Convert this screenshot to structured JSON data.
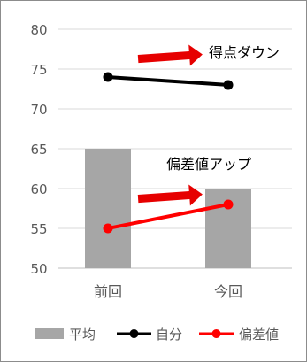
{
  "chart_data": {
    "type": "bar",
    "categories": [
      "前回",
      "今回"
    ],
    "ylim": [
      50,
      80
    ],
    "yticks": [
      50,
      55,
      60,
      65,
      70,
      75,
      80
    ],
    "grid": true,
    "legend": "bottom",
    "series": [
      {
        "name": "平均",
        "type": "bar",
        "values": [
          65,
          60
        ]
      },
      {
        "name": "自分",
        "type": "line",
        "values": [
          74,
          73
        ]
      },
      {
        "name": "偏差値",
        "type": "line",
        "values": [
          55,
          58
        ]
      }
    ],
    "annotations": [
      {
        "text": "得点ダウン",
        "series": "自分"
      },
      {
        "text": "偏差値アップ",
        "series": "偏差値"
      }
    ],
    "colors": {
      "bar": "#a6a6a6",
      "self": "#000000",
      "deviation": "#ff0000",
      "grid": "#d9d9d9",
      "axis_text": "#595959",
      "arrow": "#e60000"
    },
    "title": "",
    "xlabel": "",
    "ylabel": ""
  }
}
